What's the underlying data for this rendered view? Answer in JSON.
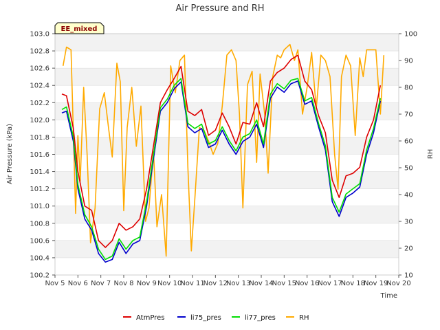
{
  "chart_data": {
    "type": "line",
    "title": "Air Pressure and RH",
    "xlabel": "Time",
    "ylabel": "Air Pressure (kPa)",
    "y2label": "RH",
    "badge": "EE_mixed",
    "xlim": [
      5,
      20
    ],
    "ylim": [
      100.2,
      103.0
    ],
    "y2lim": [
      10,
      100
    ],
    "x_ticks": [
      5,
      6,
      7,
      8,
      9,
      10,
      11,
      12,
      13,
      14,
      15,
      16,
      17,
      18,
      19,
      20
    ],
    "x_tick_labels": [
      "Nov 5",
      "Nov 6",
      "Nov 7",
      "Nov 8",
      "Nov 9",
      "Nov 10",
      "Nov 11",
      "Nov 12",
      "Nov 13",
      "Nov 14",
      "Nov 15",
      "Nov 16",
      "Nov 17",
      "Nov 18",
      "Nov 19",
      "Nov 20"
    ],
    "y_ticks": [
      100.2,
      100.4,
      100.6,
      100.8,
      101.0,
      101.2,
      101.4,
      101.6,
      101.8,
      102.0,
      102.2,
      102.4,
      102.6,
      102.8,
      103.0
    ],
    "y_tick_labels": [
      "100.2",
      "100.4",
      "100.6",
      "100.8",
      "101.0",
      "101.2",
      "101.4",
      "101.6",
      "101.8",
      "102.0",
      "102.2",
      "102.4",
      "102.6",
      "102.8",
      "103.0"
    ],
    "y2_ticks": [
      10,
      20,
      30,
      40,
      50,
      60,
      70,
      80,
      90,
      100
    ],
    "y2_tick_labels": [
      "10",
      "20",
      "30",
      "40",
      "50",
      "60",
      "70",
      "80",
      "90",
      "100"
    ],
    "grid": true,
    "legend_position": "bottom",
    "series": [
      {
        "name": "AtmPres",
        "color": "#dd0000",
        "axis": "left",
        "x": [
          5.3,
          5.5,
          5.8,
          6.0,
          6.3,
          6.6,
          6.9,
          7.2,
          7.5,
          7.8,
          8.1,
          8.4,
          8.7,
          9.0,
          9.3,
          9.6,
          9.9,
          10.2,
          10.5,
          10.8,
          11.1,
          11.4,
          11.7,
          12.0,
          12.3,
          12.6,
          12.9,
          13.2,
          13.5,
          13.8,
          14.1,
          14.4,
          14.7,
          15.0,
          15.3,
          15.6,
          15.9,
          16.2,
          16.5,
          16.8,
          17.1,
          17.4,
          17.7,
          18.0,
          18.3,
          18.6,
          18.9,
          19.2
        ],
        "y": [
          102.3,
          102.28,
          101.9,
          101.4,
          101.0,
          100.95,
          100.6,
          100.52,
          100.6,
          100.8,
          100.72,
          100.76,
          100.85,
          101.2,
          101.7,
          102.2,
          102.35,
          102.48,
          102.62,
          102.1,
          102.05,
          102.12,
          101.82,
          101.88,
          102.08,
          101.92,
          101.72,
          101.97,
          101.95,
          102.2,
          101.92,
          102.45,
          102.55,
          102.6,
          102.7,
          102.75,
          102.45,
          102.35,
          102.05,
          101.85,
          101.3,
          101.1,
          101.35,
          101.38,
          101.45,
          101.8,
          102.0,
          102.4
        ]
      },
      {
        "name": "li75_pres",
        "color": "#0000cc",
        "axis": "left",
        "x": [
          5.3,
          5.5,
          5.8,
          6.0,
          6.3,
          6.6,
          6.9,
          7.2,
          7.5,
          7.8,
          8.1,
          8.4,
          8.7,
          9.0,
          9.3,
          9.6,
          9.9,
          10.2,
          10.5,
          10.8,
          11.1,
          11.4,
          11.7,
          12.0,
          12.3,
          12.6,
          12.9,
          13.2,
          13.5,
          13.8,
          14.1,
          14.4,
          14.7,
          15.0,
          15.3,
          15.6,
          15.9,
          16.2,
          16.5,
          16.8,
          17.1,
          17.4,
          17.7,
          18.0,
          18.3,
          18.6,
          18.9,
          19.2
        ],
        "y": [
          102.08,
          102.1,
          101.75,
          101.2,
          100.85,
          100.72,
          100.45,
          100.35,
          100.38,
          100.58,
          100.45,
          100.56,
          100.6,
          101.0,
          101.55,
          102.1,
          102.2,
          102.36,
          102.44,
          101.92,
          101.85,
          101.9,
          101.68,
          101.72,
          101.88,
          101.72,
          101.6,
          101.75,
          101.8,
          101.95,
          101.68,
          102.25,
          102.38,
          102.32,
          102.42,
          102.45,
          102.18,
          102.22,
          101.92,
          101.65,
          101.05,
          100.88,
          101.1,
          101.15,
          101.22,
          101.6,
          101.85,
          102.22
        ]
      },
      {
        "name": "li77_pres",
        "color": "#00dd00",
        "axis": "left",
        "x": [
          5.3,
          5.5,
          5.8,
          6.0,
          6.3,
          6.6,
          6.9,
          7.2,
          7.5,
          7.8,
          8.1,
          8.4,
          8.7,
          9.0,
          9.3,
          9.6,
          9.9,
          10.2,
          10.5,
          10.8,
          11.1,
          11.4,
          11.7,
          12.0,
          12.3,
          12.6,
          12.9,
          13.2,
          13.5,
          13.8,
          14.1,
          14.4,
          14.7,
          15.0,
          15.3,
          15.6,
          15.9,
          16.2,
          16.5,
          16.8,
          17.1,
          17.4,
          17.7,
          18.0,
          18.3,
          18.6,
          18.9,
          19.2
        ],
        "y": [
          102.12,
          102.15,
          101.8,
          101.25,
          100.9,
          100.76,
          100.5,
          100.38,
          100.42,
          100.62,
          100.5,
          100.6,
          100.64,
          101.05,
          101.6,
          102.14,
          102.24,
          102.4,
          102.48,
          101.96,
          101.9,
          101.95,
          101.72,
          101.76,
          101.92,
          101.76,
          101.64,
          101.8,
          101.84,
          102.0,
          101.72,
          102.3,
          102.42,
          102.36,
          102.46,
          102.48,
          102.22,
          102.26,
          101.96,
          101.7,
          101.1,
          100.93,
          101.14,
          101.2,
          101.26,
          101.65,
          101.9,
          102.25
        ]
      },
      {
        "name": "RH",
        "color": "#ffaa00",
        "axis": "right",
        "x": [
          5.35,
          5.5,
          5.7,
          5.9,
          6.0,
          6.1,
          6.25,
          6.4,
          6.55,
          6.75,
          6.95,
          7.15,
          7.35,
          7.5,
          7.7,
          7.85,
          8.0,
          8.15,
          8.35,
          8.55,
          8.75,
          8.95,
          9.1,
          9.3,
          9.45,
          9.65,
          9.85,
          10.05,
          10.25,
          10.45,
          10.65,
          10.8,
          10.95,
          11.1,
          11.3,
          11.5,
          11.7,
          11.9,
          12.1,
          12.3,
          12.5,
          12.7,
          12.9,
          13.05,
          13.2,
          13.4,
          13.6,
          13.8,
          13.95,
          14.15,
          14.3,
          14.5,
          14.7,
          14.85,
          15.0,
          15.25,
          15.45,
          15.6,
          15.8,
          16.0,
          16.2,
          16.4,
          16.6,
          16.8,
          17.0,
          17.2,
          17.35,
          17.5,
          17.7,
          17.9,
          18.1,
          18.3,
          18.45,
          18.6,
          18.8,
          19.0,
          19.2,
          19.35
        ],
        "y": [
          88,
          95,
          94,
          33,
          62,
          45,
          80,
          55,
          22,
          35,
          72,
          78,
          64,
          54,
          89,
          82,
          34,
          65,
          80,
          58,
          73,
          30,
          35,
          56,
          28,
          40,
          17,
          88,
          78,
          90,
          92,
          50,
          19,
          38,
          65,
          64,
          60,
          55,
          59,
          73,
          92,
          94,
          90,
          70,
          35,
          81,
          86,
          52,
          85,
          70,
          48,
          84,
          92,
          91,
          94,
          96,
          90,
          94,
          70,
          80,
          93,
          72,
          92,
          90,
          84,
          55,
          42,
          84,
          92,
          88,
          62,
          91,
          84,
          94,
          94,
          94,
          70,
          92
        ]
      }
    ]
  }
}
